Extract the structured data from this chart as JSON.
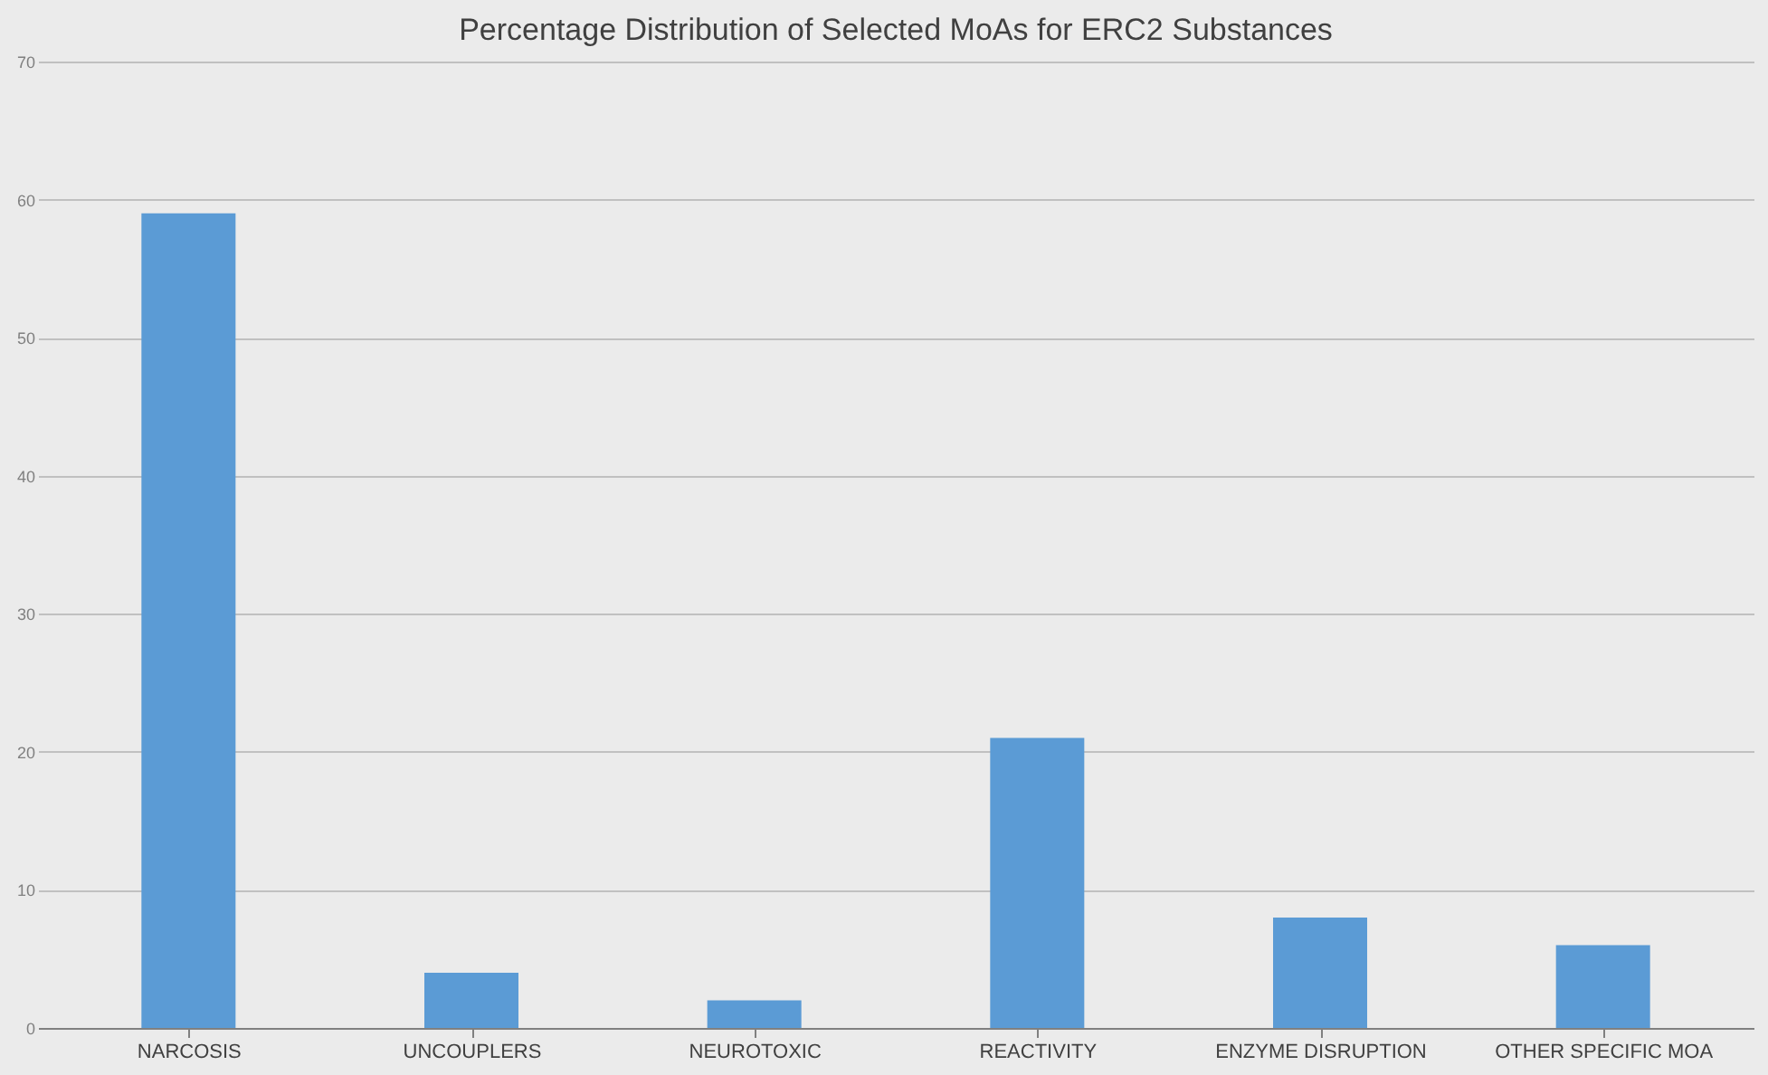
{
  "chart_data": {
    "type": "bar",
    "title": "Percentage Distribution of Selected MoAs for ERC2 Substances",
    "categories": [
      "NARCOSIS",
      "UNCOUPLERS",
      "NEUROTOXIC",
      "REACTIVITY",
      "ENZYME DISRUPTION",
      "OTHER SPECIFIC MOA"
    ],
    "values": [
      59,
      4,
      2,
      21,
      8,
      6
    ],
    "color": "#5b9bd5",
    "ylim": [
      0,
      70
    ],
    "yticks": [
      0,
      10,
      20,
      30,
      40,
      50,
      60,
      70
    ],
    "grid": "y"
  }
}
